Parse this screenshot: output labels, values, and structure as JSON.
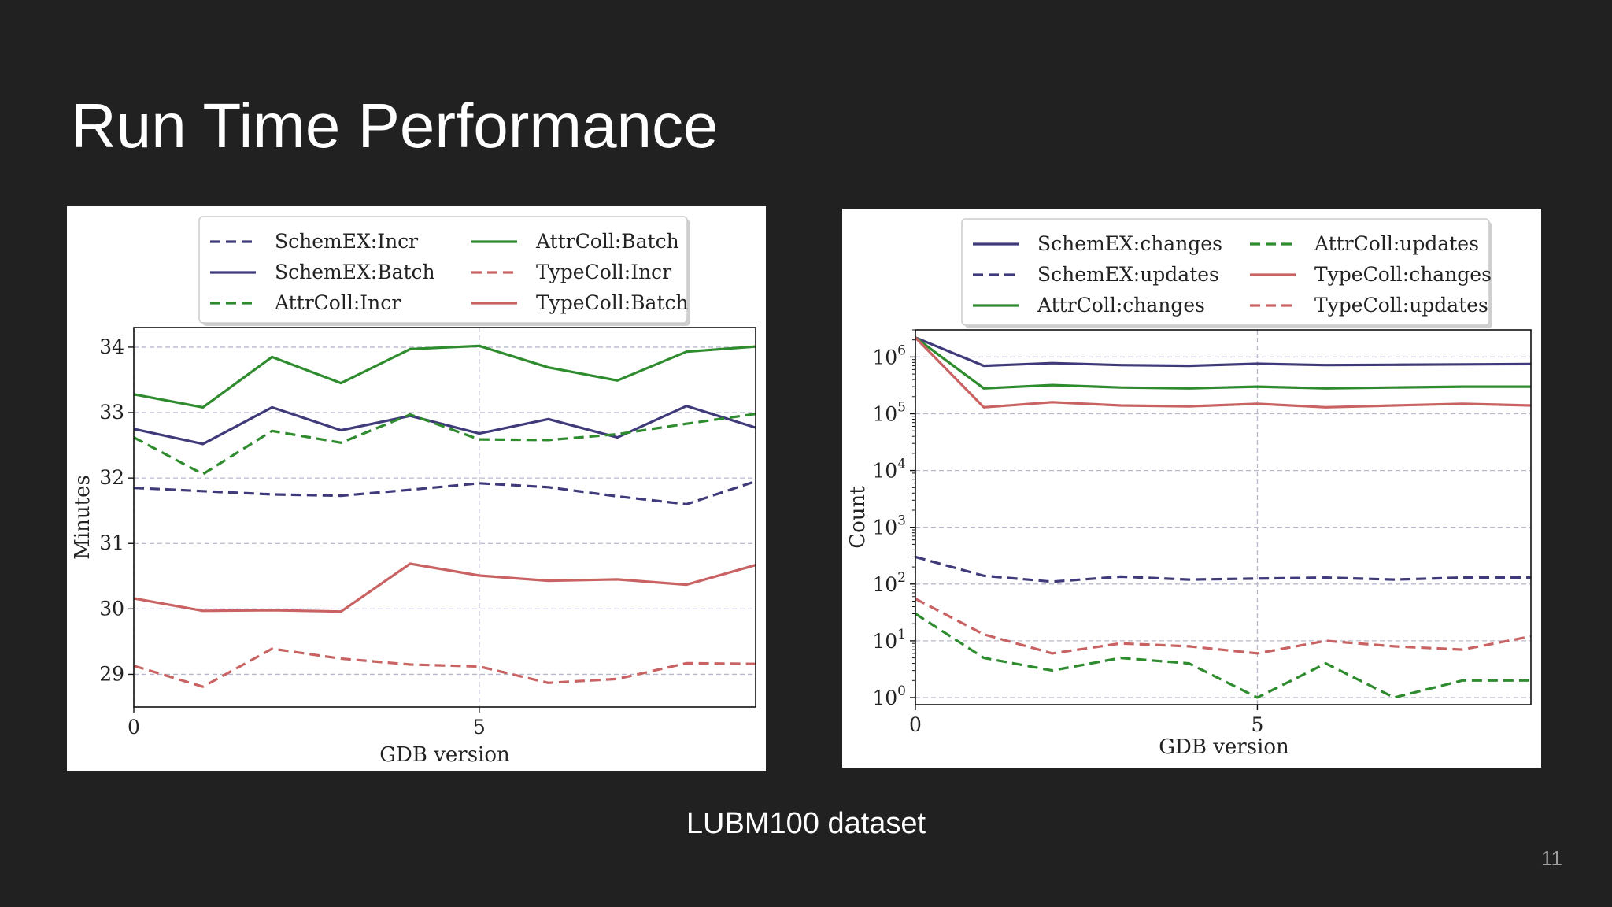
{
  "slide": {
    "title": "Run Time Performance",
    "caption": "LUBM100 dataset",
    "page_number": "11",
    "background_color": "#212121"
  },
  "colors": {
    "schemex": "#3f3b7b",
    "attrcoll": "#2e8b2e",
    "typecoll": "#c96262",
    "grid": "#b8b8cc"
  },
  "chart_data": [
    {
      "type": "line",
      "xlabel": "GDB version",
      "ylabel": "Minutes",
      "xlim": [
        0,
        9
      ],
      "ylim": [
        28.5,
        34.3
      ],
      "xticks": [
        0,
        5
      ],
      "yticks": [
        29,
        30,
        31,
        32,
        33,
        34
      ],
      "grid": true,
      "legend_position": "top",
      "x": [
        0,
        1,
        2,
        3,
        4,
        5,
        6,
        7,
        8,
        9
      ],
      "series": [
        {
          "name": "SchemEX:Incr",
          "style": "dashed",
          "color_key": "schemex",
          "values": [
            31.85,
            31.8,
            31.75,
            31.73,
            31.82,
            31.92,
            31.86,
            31.72,
            31.6,
            31.95
          ]
        },
        {
          "name": "SchemEX:Batch",
          "style": "solid",
          "color_key": "schemex",
          "values": [
            32.75,
            32.52,
            33.08,
            32.73,
            32.95,
            32.68,
            32.9,
            32.62,
            33.1,
            32.77
          ]
        },
        {
          "name": "AttrColl:Incr",
          "style": "dashed",
          "color_key": "attrcoll",
          "values": [
            32.62,
            32.06,
            32.72,
            32.54,
            32.97,
            32.59,
            32.58,
            32.67,
            32.83,
            32.98
          ]
        },
        {
          "name": "AttrColl:Batch",
          "style": "solid",
          "color_key": "attrcoll",
          "values": [
            33.28,
            33.08,
            33.85,
            33.45,
            33.97,
            34.02,
            33.69,
            33.49,
            33.93,
            34.01
          ]
        },
        {
          "name": "TypeColl:Incr",
          "style": "dashed",
          "color_key": "typecoll",
          "values": [
            29.13,
            28.81,
            29.39,
            29.24,
            29.15,
            29.12,
            28.87,
            28.93,
            29.17,
            29.16
          ]
        },
        {
          "name": "TypeColl:Batch",
          "style": "solid",
          "color_key": "typecoll",
          "values": [
            30.16,
            29.97,
            29.98,
            29.96,
            30.69,
            30.51,
            30.43,
            30.45,
            30.37,
            30.67
          ]
        }
      ],
      "legend_order": [
        "SchemEX:Incr",
        "SchemEX:Batch",
        "AttrColl:Incr",
        "AttrColl:Batch",
        "TypeColl:Incr",
        "TypeColl:Batch"
      ]
    },
    {
      "type": "line",
      "xlabel": "GDB version",
      "ylabel": "Count",
      "yscale": "log",
      "xlim": [
        0,
        9
      ],
      "ylim": [
        0.75,
        3000000
      ],
      "xticks": [
        0,
        5
      ],
      "yticks": [
        1,
        10,
        100,
        1000,
        10000,
        100000,
        1000000
      ],
      "ytick_exponents": [
        "0",
        "1",
        "2",
        "3",
        "4",
        "5",
        "6"
      ],
      "ytick_base": "10",
      "grid": true,
      "legend_position": "top",
      "x": [
        0,
        1,
        2,
        3,
        4,
        5,
        6,
        7,
        8,
        9
      ],
      "series": [
        {
          "name": "SchemEX:changes",
          "style": "solid",
          "color_key": "schemex",
          "values": [
            2200000,
            700000,
            780000,
            720000,
            700000,
            760000,
            720000,
            730000,
            740000,
            750000
          ]
        },
        {
          "name": "SchemEX:updates",
          "style": "dashed",
          "color_key": "schemex",
          "values": [
            300,
            140,
            110,
            135,
            120,
            125,
            130,
            120,
            130,
            130
          ]
        },
        {
          "name": "AttrColl:changes",
          "style": "solid",
          "color_key": "attrcoll",
          "values": [
            2200000,
            280000,
            320000,
            290000,
            280000,
            300000,
            280000,
            290000,
            300000,
            300000
          ]
        },
        {
          "name": "AttrColl:updates",
          "style": "dashed",
          "color_key": "attrcoll",
          "values": [
            30,
            5,
            3,
            5,
            4,
            1,
            4,
            1,
            2,
            2
          ]
        },
        {
          "name": "TypeColl:changes",
          "style": "solid",
          "color_key": "typecoll",
          "values": [
            2200000,
            130000,
            160000,
            140000,
            135000,
            150000,
            130000,
            140000,
            150000,
            140000
          ]
        },
        {
          "name": "TypeColl:updates",
          "style": "dashed",
          "color_key": "typecoll",
          "values": [
            55,
            13,
            6,
            9,
            8,
            6,
            10,
            8,
            7,
            12
          ]
        }
      ],
      "legend_order": [
        "SchemEX:changes",
        "SchemEX:updates",
        "AttrColl:changes",
        "AttrColl:updates",
        "TypeColl:changes",
        "TypeColl:updates"
      ]
    }
  ]
}
